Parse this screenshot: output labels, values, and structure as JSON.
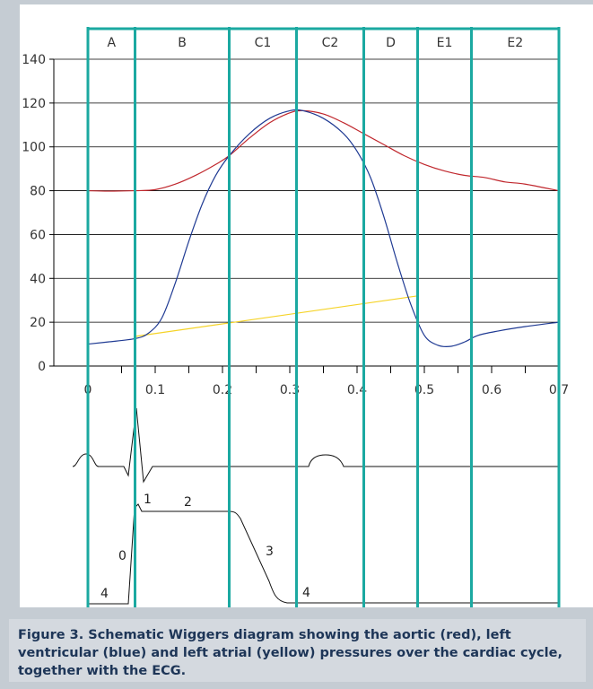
{
  "chart_data": {
    "type": "line",
    "title": "",
    "xlabel": "",
    "ylabel": "",
    "xlim": [
      0,
      0.7
    ],
    "ylim": [
      0,
      140
    ],
    "x_ticks": [
      "0",
      "0.1",
      "0.2",
      "0.3",
      "0.4",
      "0.5",
      "0.6",
      "0.7"
    ],
    "y_ticks": [
      "0",
      "20",
      "40",
      "60",
      "80",
      "100",
      "120",
      "140"
    ],
    "grid": "horizontal",
    "phases": [
      {
        "label": "A",
        "start": 0.0,
        "end": 0.07
      },
      {
        "label": "B",
        "start": 0.07,
        "end": 0.21
      },
      {
        "label": "C1",
        "start": 0.21,
        "end": 0.31
      },
      {
        "label": "C2",
        "start": 0.31,
        "end": 0.41
      },
      {
        "label": "D",
        "start": 0.41,
        "end": 0.49
      },
      {
        "label": "E1",
        "start": 0.49,
        "end": 0.57
      },
      {
        "label": "E2",
        "start": 0.57,
        "end": 0.7
      }
    ],
    "series": [
      {
        "name": "aortic",
        "color": "#c0272d",
        "x": [
          0.0,
          0.03,
          0.07,
          0.1,
          0.13,
          0.16,
          0.19,
          0.21,
          0.24,
          0.27,
          0.3,
          0.32,
          0.35,
          0.38,
          0.41,
          0.44,
          0.47,
          0.5,
          0.53,
          0.56,
          0.59,
          0.62,
          0.65,
          0.7
        ],
        "y": [
          80,
          79.8,
          80,
          80.5,
          83,
          87,
          92,
          96,
          104,
          111,
          115.5,
          116.5,
          115,
          111,
          106,
          101,
          96,
          92,
          89,
          87,
          86,
          84,
          83,
          80
        ]
      },
      {
        "name": "left ventricular",
        "color": "#1f3a93",
        "x": [
          0.0,
          0.03,
          0.07,
          0.09,
          0.11,
          0.13,
          0.15,
          0.17,
          0.19,
          0.21,
          0.24,
          0.27,
          0.3,
          0.32,
          0.35,
          0.38,
          0.4,
          0.42,
          0.44,
          0.46,
          0.48,
          0.5,
          0.52,
          0.54,
          0.56,
          0.58,
          0.61,
          0.65,
          0.7
        ],
        "y": [
          10,
          11,
          12.5,
          15,
          22,
          38,
          57,
          74,
          87,
          96,
          106,
          113,
          116.5,
          116.5,
          113,
          106,
          98,
          86,
          68,
          47,
          28,
          14,
          9.5,
          9,
          11,
          14,
          16,
          18,
          20
        ]
      },
      {
        "name": "left atrial",
        "color": "#f5d327",
        "x": [
          0.07,
          0.49
        ],
        "y": [
          13.5,
          32
        ]
      }
    ],
    "ecg": {
      "labels": [
        "4",
        "1",
        "2",
        "0",
        "3",
        "4"
      ]
    }
  },
  "caption": "Figure 3. Schematic Wiggers diagram showing the aortic (red), left ventricular (blue) and left atrial (yellow) pressures over the cardiac cycle, together with the ECG."
}
